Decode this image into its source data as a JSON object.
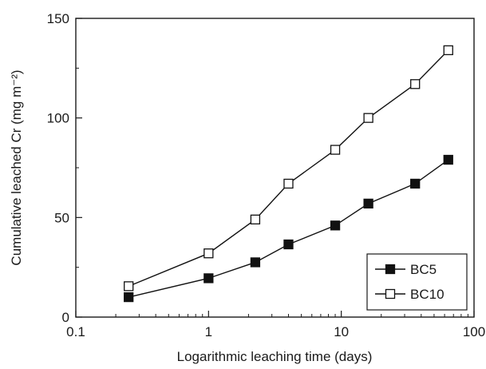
{
  "chart_data": {
    "type": "line",
    "x_scale": "log",
    "xlim": [
      0.1,
      100
    ],
    "ylim": [
      0,
      150
    ],
    "xlabel": "Logarithmic leaching time (days)",
    "ylabel": "Cumulative leached Cr (mg m⁻²)",
    "x_ticks": [
      0.1,
      1,
      10,
      100
    ],
    "x_tick_labels": [
      "0.1",
      "1",
      "10",
      "100"
    ],
    "y_ticks": [
      0,
      50,
      100,
      150
    ],
    "y_tick_labels": [
      "0",
      "50",
      "100",
      "150"
    ],
    "grid": false,
    "legend_position": "bottom-right",
    "x": [
      0.25,
      1,
      2.25,
      4,
      9,
      16,
      36,
      64
    ],
    "series": [
      {
        "name": "BC5",
        "marker": "filled-square",
        "color": "#111111",
        "values": [
          10,
          19.5,
          27.5,
          36.5,
          46,
          57,
          67,
          79
        ]
      },
      {
        "name": "BC10",
        "marker": "open-square",
        "color": "#111111",
        "values": [
          15.5,
          32,
          49,
          67,
          84,
          100,
          117,
          134
        ]
      }
    ]
  }
}
